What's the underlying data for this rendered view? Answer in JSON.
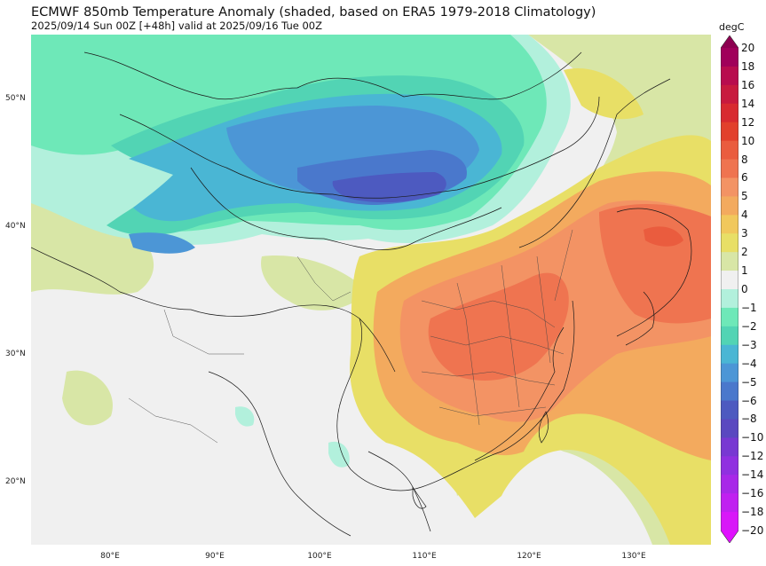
{
  "header": {
    "title": "ECMWF 850mb Temperature Anomaly (shaded, based on ERA5 1979-2018 Climatology)",
    "subtitle": "2025/09/14 Sun 00Z [+48h] valid at 2025/09/16 Tue 00Z"
  },
  "map": {
    "lon_range": [
      72,
      137
    ],
    "lat_range": [
      15,
      55
    ],
    "lat_ticks": [
      {
        "value": 50,
        "label": "50°N"
      },
      {
        "value": 40,
        "label": "40°N"
      },
      {
        "value": 30,
        "label": "30°N"
      },
      {
        "value": 20,
        "label": "20°N"
      }
    ],
    "lon_ticks": [
      {
        "value": 80,
        "label": "80°E"
      },
      {
        "value": 90,
        "label": "90°E"
      },
      {
        "value": 100,
        "label": "100°E"
      },
      {
        "value": 110,
        "label": "110°E"
      },
      {
        "value": 120,
        "label": "120°E"
      },
      {
        "value": 130,
        "label": "130°E"
      }
    ]
  },
  "colorbar": {
    "unit": "degC",
    "labels": [
      "20",
      "18",
      "16",
      "14",
      "12",
      "10",
      "8",
      "6",
      "5",
      "4",
      "3",
      "2",
      "1",
      "0",
      "−1",
      "−2",
      "−3",
      "−4",
      "−5",
      "−6",
      "−8",
      "−10",
      "−12",
      "−14",
      "−16",
      "−18",
      "−20"
    ],
    "colors": [
      "#a0005a",
      "#b80c4e",
      "#c81a3e",
      "#d82a30",
      "#e2402c",
      "#ea5c3e",
      "#ef7450",
      "#f39364",
      "#f3aa5e",
      "#f1c85c",
      "#e8df66",
      "#d8e6a6",
      "#f0f0f0",
      "#b2f0dc",
      "#6ee8b8",
      "#52d4b4",
      "#4ab6d4",
      "#4c96d6",
      "#4a78cc",
      "#4d5ac0",
      "#5a48c0",
      "#7838d2",
      "#9030e0",
      "#a828e8",
      "#c020f0",
      "#d818f8"
    ],
    "extend_top_color": "#8c0050",
    "extend_bottom_color": "#e010ff"
  }
}
